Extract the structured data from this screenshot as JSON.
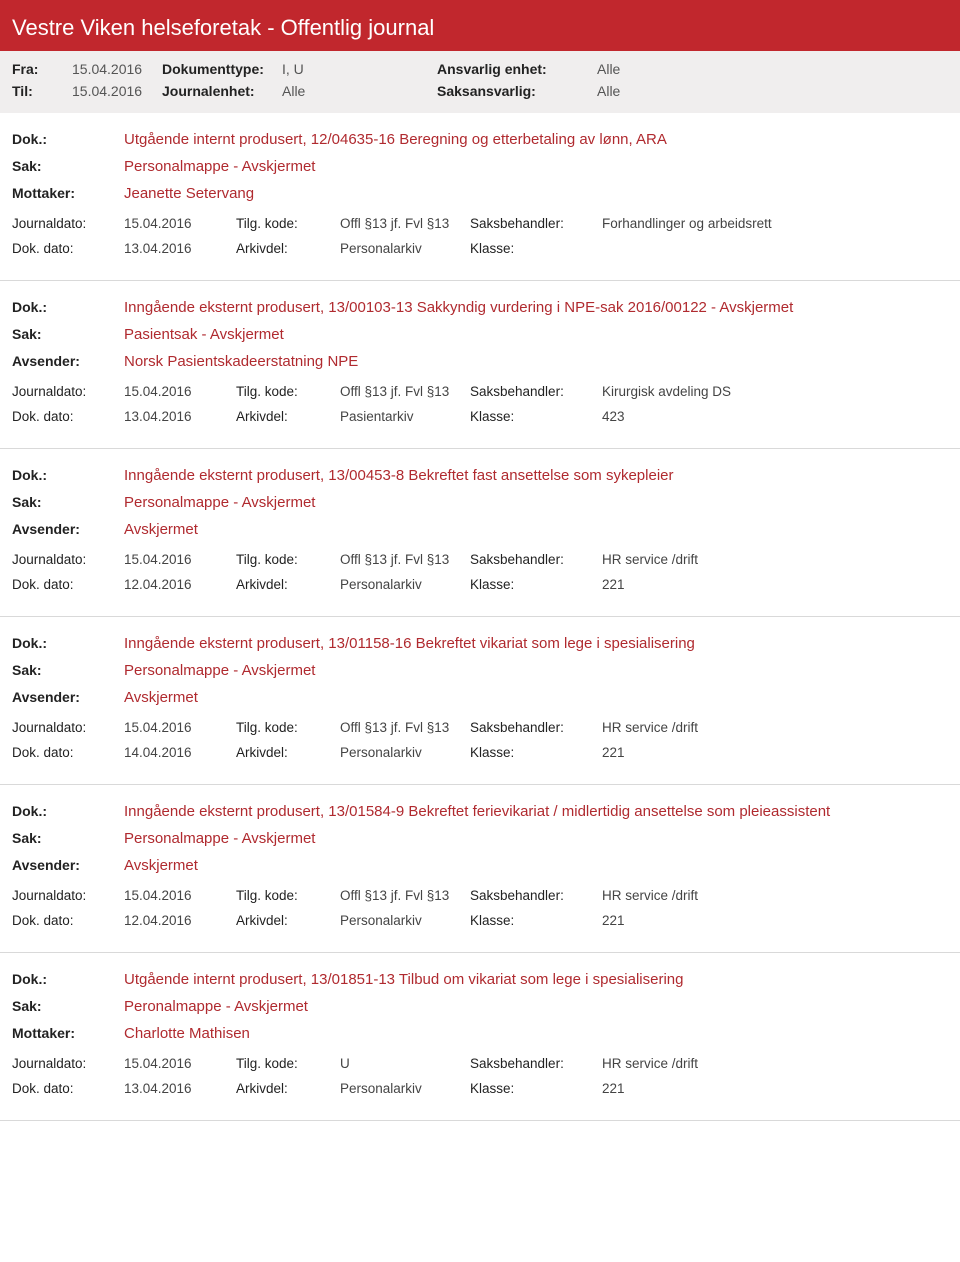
{
  "colors": {
    "accent": "#c1272d",
    "header_text": "#ffffff",
    "filter_bg": "#f0eeee",
    "value_text": "#b02a2f",
    "border": "#d9d9d9"
  },
  "header": {
    "title": "Vestre Viken helseforetak - Offentlig journal"
  },
  "filters": {
    "fra_label": "Fra:",
    "fra_value": "15.04.2016",
    "til_label": "Til:",
    "til_value": "15.04.2016",
    "doktype_label": "Dokumenttype:",
    "doktype_value": "I, U",
    "journalenhet_label": "Journalenhet:",
    "journalenhet_value": "Alle",
    "ansvarlig_label": "Ansvarlig enhet:",
    "ansvarlig_value": "Alle",
    "saksansvarlig_label": "Saksansvarlig:",
    "saksansvarlig_value": "Alle"
  },
  "labels": {
    "dok": "Dok.:",
    "sak": "Sak:",
    "mottaker": "Mottaker:",
    "avsender": "Avsender:",
    "journaldato": "Journaldato:",
    "dokdato": "Dok. dato:",
    "tilgkode": "Tilg. kode:",
    "arkivdel": "Arkivdel:",
    "saksbehandler": "Saksbehandler:",
    "klasse": "Klasse:"
  },
  "entries": [
    {
      "dok": "Utgående internt produsert, 12/04635-16 Beregning og etterbetaling av lønn, ARA",
      "sak": "Personalmappe - Avskjermet",
      "party_label": "Mottaker:",
      "party": "Jeanette Setervang",
      "journaldato": "15.04.2016",
      "dokdato": "13.04.2016",
      "tilgkode": "Offl §13 jf. Fvl §13",
      "arkivdel": "Personalarkiv",
      "saksbehandler": "Forhandlinger og arbeidsrett",
      "klasse": ""
    },
    {
      "dok": "Inngående eksternt produsert, 13/00103-13 Sakkyndig vurdering i NPE-sak 2016/00122 - Avskjermet",
      "sak": "Pasientsak - Avskjermet",
      "party_label": "Avsender:",
      "party": "Norsk Pasientskadeerstatning NPE",
      "journaldato": "15.04.2016",
      "dokdato": "13.04.2016",
      "tilgkode": "Offl §13 jf. Fvl §13",
      "arkivdel": "Pasientarkiv",
      "saksbehandler": "Kirurgisk avdeling DS",
      "klasse": "423"
    },
    {
      "dok": "Inngående eksternt produsert, 13/00453-8 Bekreftet fast ansettelse som sykepleier",
      "sak": "Personalmappe - Avskjermet",
      "party_label": "Avsender:",
      "party": "Avskjermet",
      "journaldato": "15.04.2016",
      "dokdato": "12.04.2016",
      "tilgkode": "Offl §13 jf. Fvl §13",
      "arkivdel": "Personalarkiv",
      "saksbehandler": "HR service /drift",
      "klasse": "221"
    },
    {
      "dok": "Inngående eksternt produsert, 13/01158-16 Bekreftet vikariat som lege i spesialisering",
      "sak": "Personalmappe - Avskjermet",
      "party_label": "Avsender:",
      "party": "Avskjermet",
      "journaldato": "15.04.2016",
      "dokdato": "14.04.2016",
      "tilgkode": "Offl §13 jf. Fvl §13",
      "arkivdel": "Personalarkiv",
      "saksbehandler": "HR service /drift",
      "klasse": "221"
    },
    {
      "dok": "Inngående eksternt produsert, 13/01584-9 Bekreftet ferievikariat / midlertidig ansettelse som pleieassistent",
      "sak": "Personalmappe - Avskjermet",
      "party_label": "Avsender:",
      "party": "Avskjermet",
      "journaldato": "15.04.2016",
      "dokdato": "12.04.2016",
      "tilgkode": "Offl §13 jf. Fvl §13",
      "arkivdel": "Personalarkiv",
      "saksbehandler": "HR service /drift",
      "klasse": "221"
    },
    {
      "dok": "Utgående internt produsert, 13/01851-13 Tilbud om vikariat som lege i spesialisering",
      "sak": "Peronalmappe - Avskjermet",
      "party_label": "Mottaker:",
      "party": "Charlotte Mathisen",
      "journaldato": "15.04.2016",
      "dokdato": "13.04.2016",
      "tilgkode": "U",
      "arkivdel": "Personalarkiv",
      "saksbehandler": "HR service /drift",
      "klasse": "221"
    }
  ]
}
